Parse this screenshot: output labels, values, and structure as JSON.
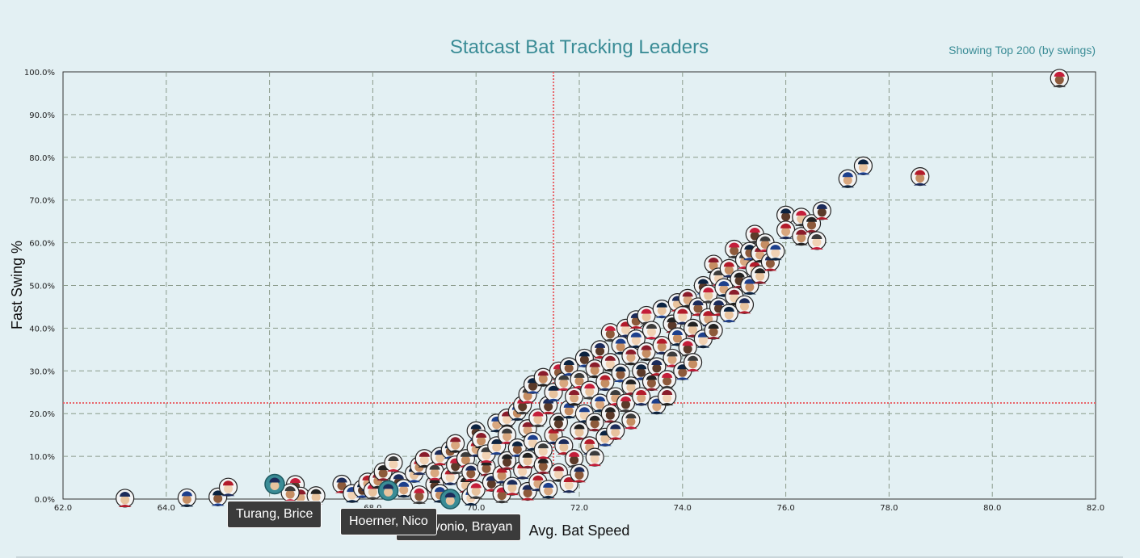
{
  "header": {
    "title": "Statcast Bat Tracking Leaders",
    "subtitle": "Showing Top 200 (by swings)"
  },
  "tooltips": [
    {
      "label": "Turang, Brice"
    },
    {
      "label": "Bayonio, Brayan"
    },
    {
      "label": "Hoerner, Nico"
    }
  ],
  "colors": {
    "background": "#e3f0f3",
    "title": "#3a8c96",
    "reference_line": "#e8656a",
    "highlight": "#3a8c96",
    "grid": "#8a9a8a"
  },
  "chart_data": {
    "type": "scatter",
    "title": "Statcast Bat Tracking Leaders",
    "subtitle": "Showing Top 200 (by swings)",
    "xlabel": "Avg. Bat Speed",
    "ylabel": "Fast Swing %",
    "xlim": [
      62,
      82
    ],
    "ylim": [
      0,
      100
    ],
    "xticks": [
      "62.0",
      "64.0",
      "66.0",
      "68.0",
      "70.0",
      "72.0",
      "74.0",
      "76.0",
      "78.0",
      "80.0",
      "82.0"
    ],
    "yticks": [
      "0.0%",
      "10.0%",
      "20.0%",
      "30.0%",
      "40.0%",
      "50.0%",
      "60.0%",
      "70.0%",
      "80.0%",
      "90.0%",
      "100.0%"
    ],
    "grid": true,
    "reference_lines": {
      "x": 71.5,
      "y": 22.5
    },
    "highlighted": [
      {
        "name": "Turang, Brice",
        "x": 66.1,
        "y": 3.5
      },
      {
        "name": "Hoerner, Nico",
        "x": 68.3,
        "y": 2.0
      },
      {
        "name": "Bayonio, Brayan",
        "x": 69.5,
        "y": 0.0
      }
    ],
    "points": [
      [
        63.2,
        0.2
      ],
      [
        64.4,
        0.3
      ],
      [
        65.0,
        0.5
      ],
      [
        65.2,
        2.8
      ],
      [
        66.5,
        3.4
      ],
      [
        66.6,
        0.7
      ],
      [
        66.9,
        0.8
      ],
      [
        66.4,
        1.5
      ],
      [
        67.4,
        3.5
      ],
      [
        67.6,
        1.3
      ],
      [
        67.8,
        2.4
      ],
      [
        67.9,
        4.0
      ],
      [
        68.0,
        2.0
      ],
      [
        68.1,
        4.6
      ],
      [
        68.2,
        6.4
      ],
      [
        68.4,
        8.5
      ],
      [
        68.5,
        4.3
      ],
      [
        68.6,
        2.5
      ],
      [
        68.8,
        6.0
      ],
      [
        68.9,
        7.8
      ],
      [
        68.9,
        1.0
      ],
      [
        69.0,
        9.5
      ],
      [
        69.2,
        3.4
      ],
      [
        69.2,
        6.5
      ],
      [
        69.3,
        10.0
      ],
      [
        69.3,
        1.3
      ],
      [
        69.5,
        11.5
      ],
      [
        69.5,
        5.4
      ],
      [
        69.6,
        8.0
      ],
      [
        69.6,
        13.0
      ],
      [
        69.8,
        3.6
      ],
      [
        69.8,
        9.5
      ],
      [
        69.9,
        6.3
      ],
      [
        69.9,
        0.6
      ],
      [
        70.0,
        16.0
      ],
      [
        70.0,
        12.0
      ],
      [
        70.0,
        2.2
      ],
      [
        70.1,
        14.0
      ],
      [
        70.2,
        7.5
      ],
      [
        70.2,
        10.6
      ],
      [
        70.3,
        3.9
      ],
      [
        70.4,
        17.8
      ],
      [
        70.4,
        12.5
      ],
      [
        70.5,
        5.8
      ],
      [
        70.5,
        1.2
      ],
      [
        70.6,
        19.0
      ],
      [
        70.6,
        9.0
      ],
      [
        70.6,
        15.0
      ],
      [
        70.7,
        3.0
      ],
      [
        70.8,
        20.5
      ],
      [
        70.8,
        12.0
      ],
      [
        70.9,
        6.8
      ],
      [
        70.9,
        22.0
      ],
      [
        71.0,
        16.5
      ],
      [
        71.0,
        9.3
      ],
      [
        71.0,
        24.5
      ],
      [
        71.0,
        1.8
      ],
      [
        71.1,
        13.5
      ],
      [
        71.1,
        26.8
      ],
      [
        71.2,
        4.0
      ],
      [
        71.2,
        19.0
      ],
      [
        71.3,
        28.5
      ],
      [
        71.3,
        8.0
      ],
      [
        71.3,
        11.5
      ],
      [
        71.4,
        22.0
      ],
      [
        71.4,
        2.3
      ],
      [
        71.5,
        25.0
      ],
      [
        71.5,
        15.0
      ],
      [
        71.6,
        30.0
      ],
      [
        71.6,
        6.2
      ],
      [
        71.6,
        18.0
      ],
      [
        71.7,
        27.5
      ],
      [
        71.7,
        12.5
      ],
      [
        71.8,
        21.0
      ],
      [
        71.8,
        31.0
      ],
      [
        71.8,
        3.6
      ],
      [
        71.9,
        9.5
      ],
      [
        71.9,
        24.0
      ],
      [
        72.0,
        16.0
      ],
      [
        72.0,
        28.0
      ],
      [
        72.0,
        6.0
      ],
      [
        72.1,
        20.0
      ],
      [
        72.1,
        33.0
      ],
      [
        72.2,
        12.5
      ],
      [
        72.2,
        25.5
      ],
      [
        72.3,
        30.5
      ],
      [
        72.3,
        18.0
      ],
      [
        72.3,
        9.8
      ],
      [
        72.4,
        35.0
      ],
      [
        72.4,
        22.5
      ],
      [
        72.5,
        14.5
      ],
      [
        72.5,
        27.5
      ],
      [
        72.6,
        39.0
      ],
      [
        72.6,
        32.0
      ],
      [
        72.6,
        20.0
      ],
      [
        72.7,
        24.0
      ],
      [
        72.7,
        16.0
      ],
      [
        72.8,
        36.0
      ],
      [
        72.8,
        29.5
      ],
      [
        72.9,
        40.0
      ],
      [
        72.9,
        22.5
      ],
      [
        73.0,
        33.5
      ],
      [
        73.0,
        26.5
      ],
      [
        73.0,
        18.5
      ],
      [
        73.1,
        42.0
      ],
      [
        73.1,
        37.5
      ],
      [
        73.2,
        30.0
      ],
      [
        73.2,
        24.0
      ],
      [
        73.3,
        43.0
      ],
      [
        73.3,
        34.5
      ],
      [
        73.4,
        27.5
      ],
      [
        73.4,
        39.5
      ],
      [
        73.5,
        31.0
      ],
      [
        73.5,
        22.0
      ],
      [
        73.6,
        44.5
      ],
      [
        73.6,
        36.0
      ],
      [
        73.7,
        28.0
      ],
      [
        73.7,
        24.0
      ],
      [
        73.8,
        41.0
      ],
      [
        73.8,
        33.0
      ],
      [
        73.9,
        46.0
      ],
      [
        73.9,
        38.0
      ],
      [
        74.0,
        30.0
      ],
      [
        74.0,
        43.0
      ],
      [
        74.1,
        35.5
      ],
      [
        74.1,
        47.0
      ],
      [
        74.2,
        40.0
      ],
      [
        74.2,
        32.0
      ],
      [
        74.3,
        45.0
      ],
      [
        74.4,
        37.5
      ],
      [
        74.4,
        50.0
      ],
      [
        74.5,
        42.5
      ],
      [
        74.5,
        48.0
      ],
      [
        74.6,
        55.0
      ],
      [
        74.6,
        39.5
      ],
      [
        74.7,
        52.0
      ],
      [
        74.7,
        45.0
      ],
      [
        74.8,
        49.5
      ],
      [
        74.9,
        43.5
      ],
      [
        74.9,
        54.0
      ],
      [
        75.0,
        58.5
      ],
      [
        75.0,
        47.5
      ],
      [
        75.1,
        51.5
      ],
      [
        75.2,
        56.0
      ],
      [
        75.2,
        45.5
      ],
      [
        75.3,
        50.0
      ],
      [
        75.3,
        58.0
      ],
      [
        75.4,
        54.0
      ],
      [
        75.4,
        62.0
      ],
      [
        75.5,
        57.5
      ],
      [
        75.5,
        52.5
      ],
      [
        75.6,
        60.0
      ],
      [
        75.7,
        55.5
      ],
      [
        75.8,
        58.0
      ],
      [
        76.0,
        66.5
      ],
      [
        76.0,
        63.0
      ],
      [
        76.3,
        66.0
      ],
      [
        76.3,
        61.5
      ],
      [
        76.5,
        64.5
      ],
      [
        76.6,
        60.5
      ],
      [
        76.7,
        67.5
      ],
      [
        77.2,
        75.0
      ],
      [
        77.5,
        78.0
      ],
      [
        78.6,
        75.5
      ],
      [
        81.3,
        98.5
      ]
    ]
  }
}
